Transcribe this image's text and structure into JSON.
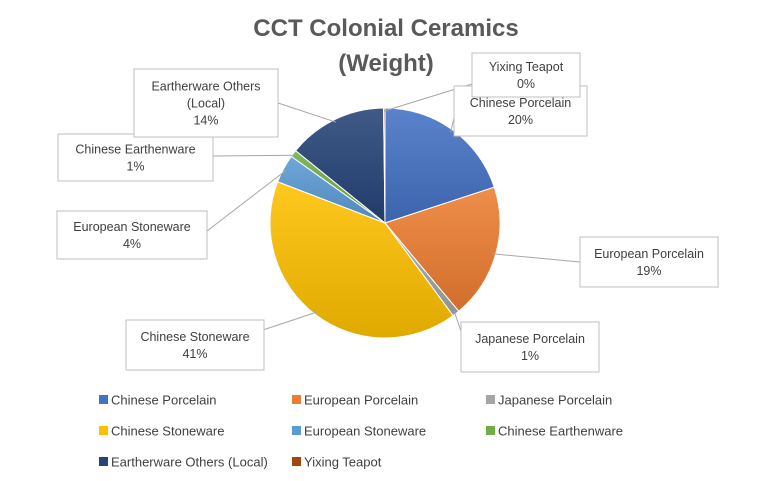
{
  "chart_data": {
    "type": "pie",
    "title_lines": [
      "CCT Colonial Ceramics",
      "(Weight)"
    ],
    "legend_position": "bottom",
    "slices": [
      {
        "label": "Chinese Porcelain",
        "value": 20,
        "pct_label": "20%",
        "color": "#4472c4"
      },
      {
        "label": "European Porcelain",
        "value": 19,
        "pct_label": "19%",
        "color": "#ed7d31"
      },
      {
        "label": "Japanese Porcelain",
        "value": 1,
        "pct_label": "1%",
        "color": "#a5a5a5"
      },
      {
        "label": "Chinese Stoneware",
        "value": 41,
        "pct_label": "41%",
        "color": "#ffc000"
      },
      {
        "label": "European Stoneware",
        "value": 4,
        "pct_label": "4%",
        "color": "#5b9bd5"
      },
      {
        "label": "Chinese Earthenware",
        "value": 1,
        "pct_label": "1%",
        "color": "#70ad47"
      },
      {
        "label": "Eartherware Others (Local)",
        "value": 14,
        "pct_label": "14%",
        "color": "#264478"
      },
      {
        "label": "Yixing Teapot",
        "value": 0.2,
        "pct_label": "0%",
        "color": "#9e480e"
      }
    ]
  }
}
